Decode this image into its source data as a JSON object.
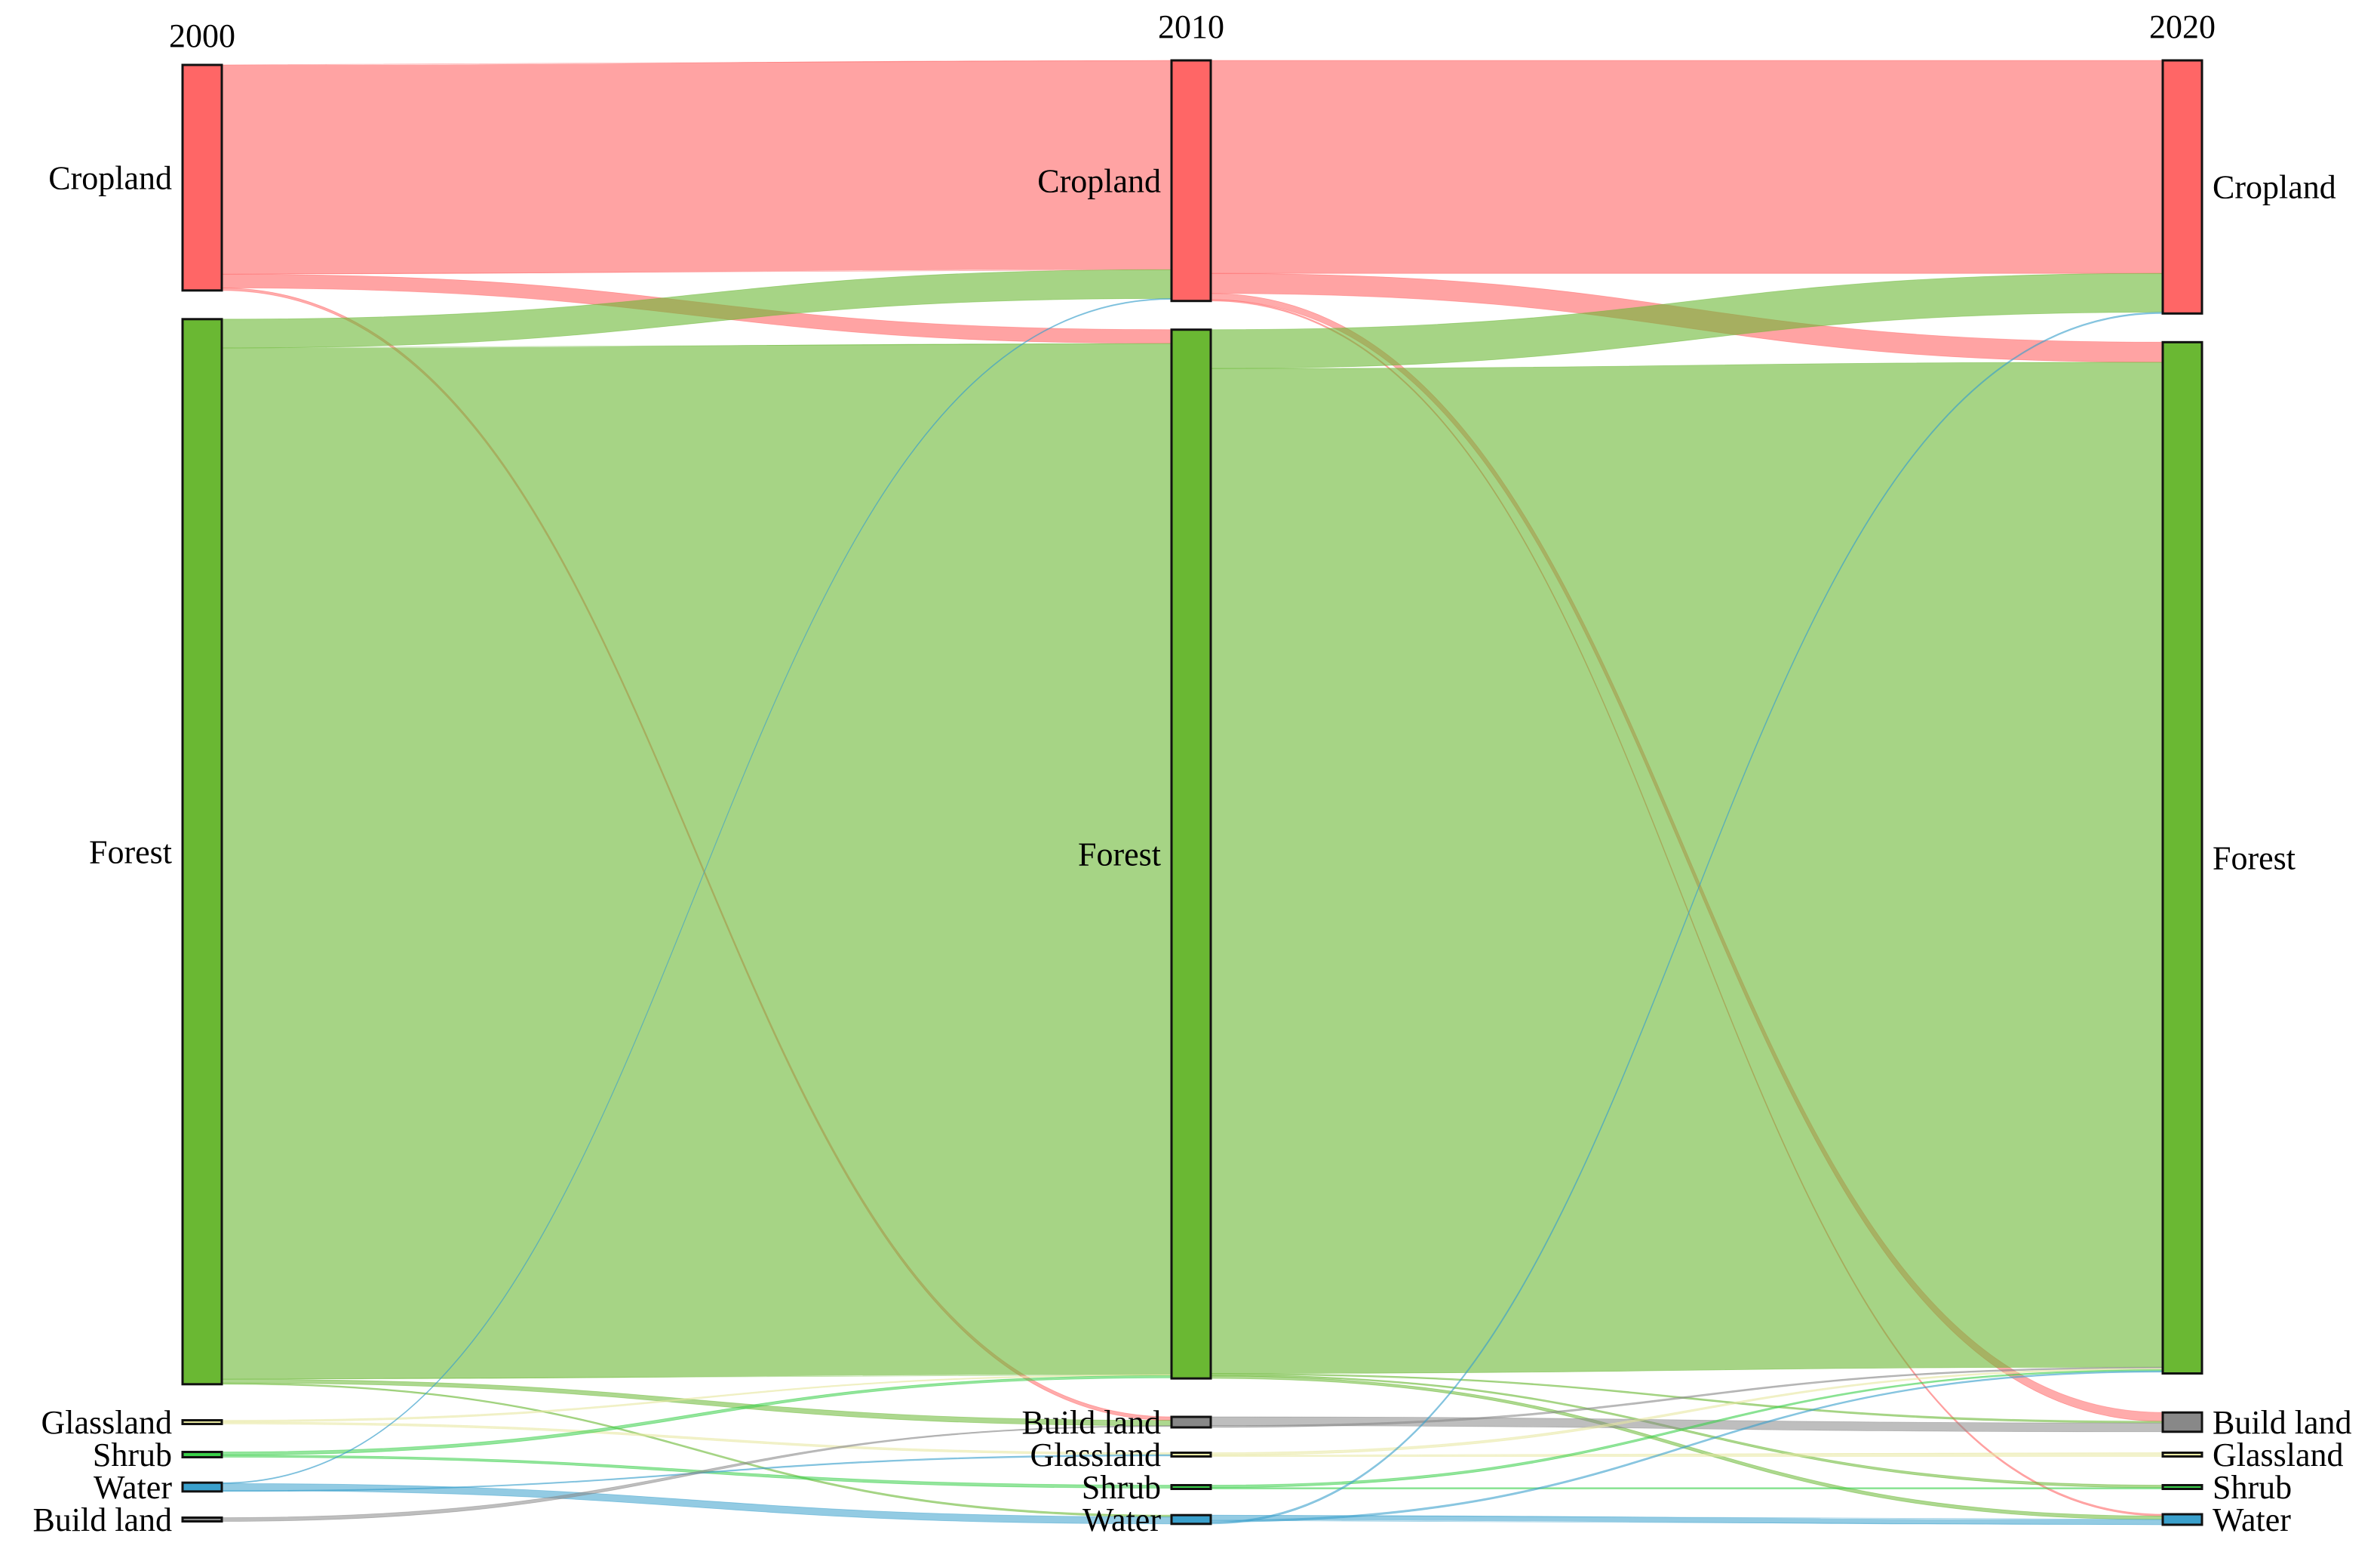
{
  "chart_data": {
    "type": "sankey",
    "title": "",
    "columns": [
      {
        "year": "2000",
        "nodes": [
          {
            "name": "Cropland",
            "value": 180
          },
          {
            "name": "Forest",
            "value": 850
          },
          {
            "name": "Glassland",
            "value": 1.5
          },
          {
            "name": "Shrub",
            "value": 3
          },
          {
            "name": "Water",
            "value": 5
          },
          {
            "name": "Build land",
            "value": 0.5
          }
        ]
      },
      {
        "year": "2010",
        "nodes": [
          {
            "name": "Cropland",
            "value": 192
          },
          {
            "name": "Forest",
            "value": 837
          },
          {
            "name": "Build land",
            "value": 6
          },
          {
            "name": "Glassland",
            "value": 1.5
          },
          {
            "name": "Shrub",
            "value": 1.5
          },
          {
            "name": "Water",
            "value": 5
          }
        ]
      },
      {
        "year": "2020",
        "nodes": [
          {
            "name": "Cropland",
            "value": 202
          },
          {
            "name": "Forest",
            "value": 823
          },
          {
            "name": "Build land",
            "value": 11
          },
          {
            "name": "Glassland",
            "value": 0.5
          },
          {
            "name": "Shrub",
            "value": 1.5
          },
          {
            "name": "Water",
            "value": 6
          }
        ]
      }
    ],
    "links": [
      {
        "from": [
          0,
          "Cropland"
        ],
        "to": [
          1,
          "Cropland"
        ],
        "value": 167
      },
      {
        "from": [
          0,
          "Cropland"
        ],
        "to": [
          1,
          "Forest"
        ],
        "value": 11
      },
      {
        "from": [
          0,
          "Cropland"
        ],
        "to": [
          1,
          "Build land"
        ],
        "value": 2
      },
      {
        "from": [
          0,
          "Forest"
        ],
        "to": [
          1,
          "Cropland"
        ],
        "value": 23
      },
      {
        "from": [
          0,
          "Forest"
        ],
        "to": [
          1,
          "Forest"
        ],
        "value": 823
      },
      {
        "from": [
          0,
          "Forest"
        ],
        "to": [
          1,
          "Build land"
        ],
        "value": 3
      },
      {
        "from": [
          0,
          "Forest"
        ],
        "to": [
          1,
          "Water"
        ],
        "value": 1
      },
      {
        "from": [
          0,
          "Glassland"
        ],
        "to": [
          1,
          "Forest"
        ],
        "value": 0.7
      },
      {
        "from": [
          0,
          "Glassland"
        ],
        "to": [
          1,
          "Glassland"
        ],
        "value": 0.8
      },
      {
        "from": [
          0,
          "Shrub"
        ],
        "to": [
          1,
          "Forest"
        ],
        "value": 1.8
      },
      {
        "from": [
          0,
          "Shrub"
        ],
        "to": [
          1,
          "Shrub"
        ],
        "value": 1.2
      },
      {
        "from": [
          0,
          "Water"
        ],
        "to": [
          1,
          "Cropland"
        ],
        "value": 0.5
      },
      {
        "from": [
          0,
          "Water"
        ],
        "to": [
          1,
          "Water"
        ],
        "value": 4
      },
      {
        "from": [
          0,
          "Water"
        ],
        "to": [
          1,
          "Glassland"
        ],
        "value": 0.5
      },
      {
        "from": [
          0,
          "Build land"
        ],
        "to": [
          1,
          "Build land"
        ],
        "value": 0.5
      },
      {
        "from": [
          1,
          "Cropland"
        ],
        "to": [
          2,
          "Cropland"
        ],
        "value": 170
      },
      {
        "from": [
          1,
          "Cropland"
        ],
        "to": [
          2,
          "Forest"
        ],
        "value": 16
      },
      {
        "from": [
          1,
          "Cropland"
        ],
        "to": [
          2,
          "Build land"
        ],
        "value": 5
      },
      {
        "from": [
          1,
          "Cropland"
        ],
        "to": [
          2,
          "Water"
        ],
        "value": 1
      },
      {
        "from": [
          1,
          "Forest"
        ],
        "to": [
          2,
          "Cropland"
        ],
        "value": 31
      },
      {
        "from": [
          1,
          "Forest"
        ],
        "to": [
          2,
          "Forest"
        ],
        "value": 802
      },
      {
        "from": [
          1,
          "Forest"
        ],
        "to": [
          2,
          "Build land"
        ],
        "value": 1
      },
      {
        "from": [
          1,
          "Forest"
        ],
        "to": [
          2,
          "Shrub"
        ],
        "value": 1
      },
      {
        "from": [
          1,
          "Forest"
        ],
        "to": [
          2,
          "Water"
        ],
        "value": 2
      },
      {
        "from": [
          1,
          "Build land"
        ],
        "to": [
          2,
          "Build land"
        ],
        "value": 5
      },
      {
        "from": [
          1,
          "Build land"
        ],
        "to": [
          2,
          "Forest"
        ],
        "value": 1
      },
      {
        "from": [
          1,
          "Glassland"
        ],
        "to": [
          2,
          "Forest"
        ],
        "value": 1
      },
      {
        "from": [
          1,
          "Glassland"
        ],
        "to": [
          2,
          "Glassland"
        ],
        "value": 0.5
      },
      {
        "from": [
          1,
          "Shrub"
        ],
        "to": [
          2,
          "Forest"
        ],
        "value": 1
      },
      {
        "from": [
          1,
          "Shrub"
        ],
        "to": [
          2,
          "Shrub"
        ],
        "value": 0.5
      },
      {
        "from": [
          1,
          "Water"
        ],
        "to": [
          2,
          "Water"
        ],
        "value": 3
      },
      {
        "from": [
          1,
          "Water"
        ],
        "to": [
          2,
          "Forest"
        ],
        "value": 1
      },
      {
        "from": [
          1,
          "Water"
        ],
        "to": [
          2,
          "Cropland"
        ],
        "value": 1
      }
    ],
    "colors": {
      "Cropland": "#ff6666",
      "Forest": "#6ab833",
      "Glassland": "#e8e8a0",
      "Shrub": "#3ad04a",
      "Water": "#3aa0cc",
      "Build land": "#888888"
    }
  }
}
